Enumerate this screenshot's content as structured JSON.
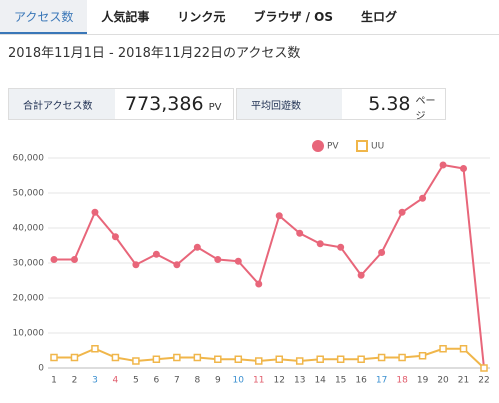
{
  "tabs": [
    "アクセス数",
    "人気記事",
    "リンク元",
    "ブラウザ / OS",
    "生ログ"
  ],
  "date_range": "2018年11月1日 - 2018年11月22日のアクセス数",
  "stats": [
    {
      "label": "合計アクセス数",
      "value": "773,386",
      "unit": "PV"
    },
    {
      "label": "平均回遊数",
      "value": "5.38",
      "unit": "ページ"
    }
  ],
  "chart_data": {
    "type": "line",
    "categories": [
      "1",
      "2",
      "3",
      "4",
      "5",
      "6",
      "7",
      "8",
      "9",
      "10",
      "11",
      "12",
      "13",
      "14",
      "15",
      "16",
      "17",
      "18",
      "19",
      "20",
      "21",
      "22"
    ],
    "category_colors": [
      "#555",
      "#555",
      "#3a8fd0",
      "#e05a6a",
      "#555",
      "#555",
      "#555",
      "#555",
      "#555",
      "#3a8fd0",
      "#e05a6a",
      "#555",
      "#555",
      "#555",
      "#555",
      "#555",
      "#3a8fd0",
      "#e05a6a",
      "#555",
      "#555",
      "#555",
      "#555"
    ],
    "series": [
      {
        "name": "PV",
        "color": "#e8667a",
        "marker": "circle",
        "values": [
          31000,
          31000,
          44500,
          37500,
          29500,
          32500,
          29500,
          34500,
          31000,
          30500,
          24000,
          43500,
          38500,
          35500,
          34500,
          26500,
          33000,
          44500,
          48500,
          58000,
          57000,
          0
        ]
      },
      {
        "name": "UU",
        "color": "#f0b64a",
        "marker": "square",
        "values": [
          3000,
          3000,
          5500,
          3000,
          2000,
          2500,
          3000,
          3000,
          2500,
          2500,
          2000,
          2500,
          2000,
          2500,
          2500,
          2500,
          3000,
          3000,
          3500,
          5500,
          5500,
          0
        ]
      }
    ],
    "ylim": [
      0,
      60000
    ],
    "yticks": [
      0,
      {
        "value": 10000,
        "label": "10,000"
      },
      {
        "value": 20000,
        "label": "20,000"
      },
      {
        "value": 30000,
        "label": "30,000"
      },
      {
        "value": 40000,
        "label": "40,000"
      },
      {
        "value": 50000,
        "label": "50,000"
      },
      {
        "value": 60000,
        "label": "60,000"
      }
    ],
    "grid": true
  }
}
